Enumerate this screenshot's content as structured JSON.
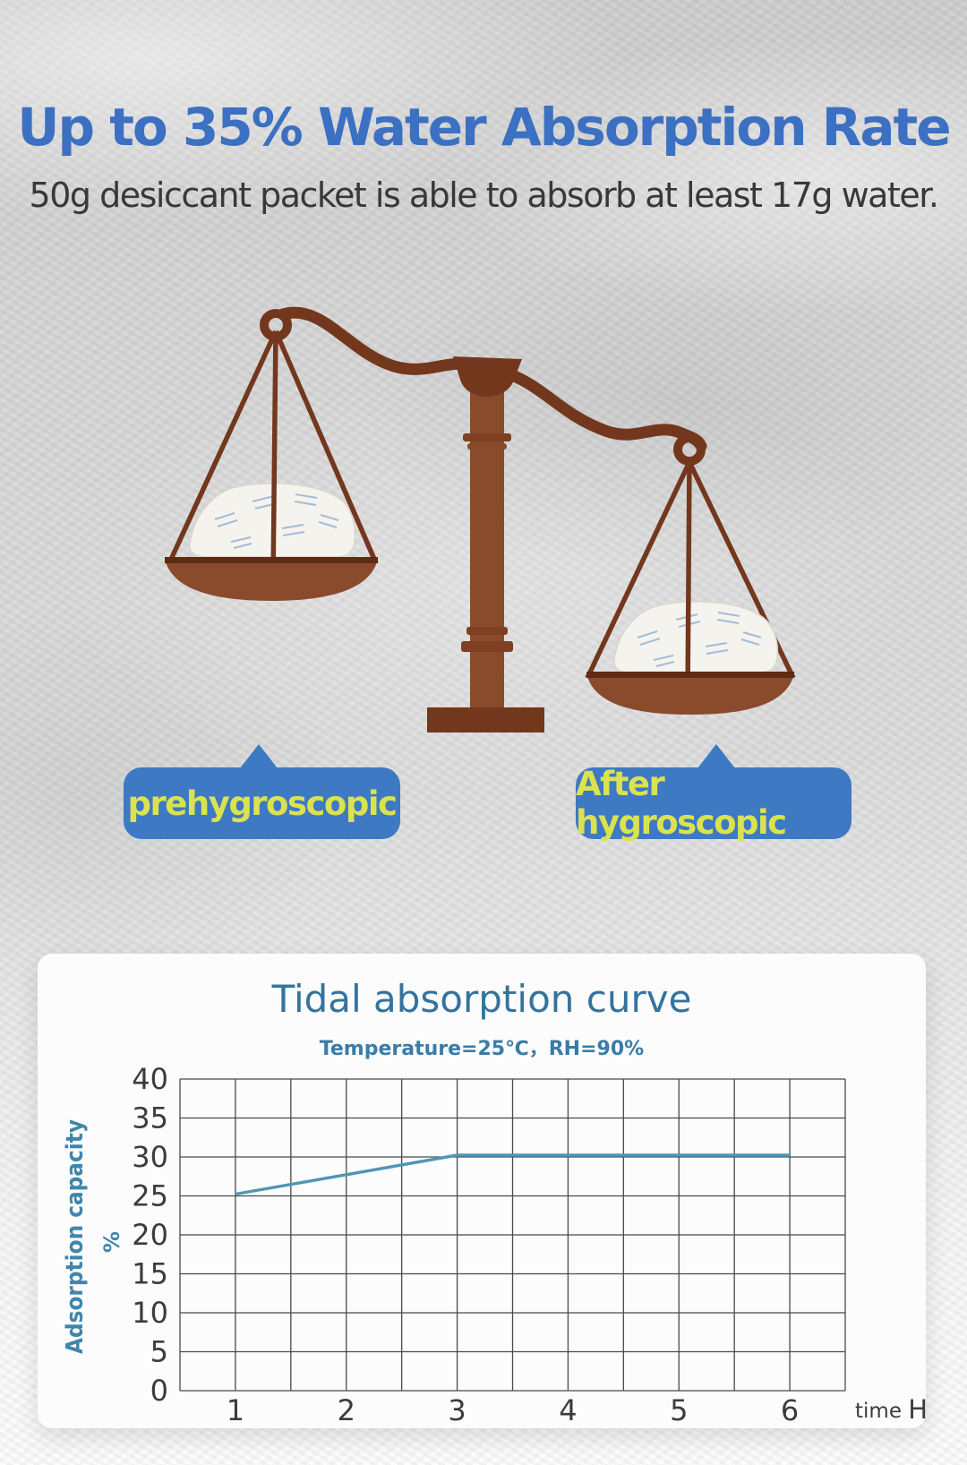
{
  "page": {
    "title": "Up to 35% Water Absorption Rate",
    "subtitle": "50g desiccant packet is able to absorb at least 17g water."
  },
  "scale": {
    "left_label": "prehygroscopic",
    "right_label": "After hygroscopic"
  },
  "colors": {
    "title_blue": "#3b70c2",
    "bubble_blue": "#3e79c4",
    "bubble_text": "#dbe24f",
    "scale_brown_dark": "#73371d",
    "scale_brown": "#8a4a2c",
    "chart_title": "#34739e",
    "axis_label_teal": "#3e86ac",
    "tick_text": "#3c3c3c",
    "grid": "#4a4a4a",
    "curve": "#4e96b5"
  },
  "chart_data": {
    "type": "line",
    "title": "Tidal absorption curve",
    "subtitle": "Temperature=25℃，RH=90%",
    "xlabel": "time",
    "xlabel_unit": "H",
    "ylabel": "Adsorption  capacity",
    "ylabel_unit": "%",
    "xlim": [
      0.5,
      6.5
    ],
    "ylim": [
      0,
      40
    ],
    "x_gridline_step": 0.5,
    "y_gridline_step": 5,
    "xticks": [
      1,
      2,
      3,
      4,
      5,
      6
    ],
    "yticks": [
      0,
      5,
      10,
      15,
      20,
      25,
      30,
      35,
      40
    ],
    "grid": true,
    "legend_position": "none",
    "series": [
      {
        "name": "adsorption-capacity",
        "points": [
          [
            1,
            25
          ],
          [
            2,
            27.5
          ],
          [
            3,
            30
          ],
          [
            4,
            30
          ],
          [
            5,
            30
          ],
          [
            6,
            30
          ]
        ]
      }
    ]
  }
}
